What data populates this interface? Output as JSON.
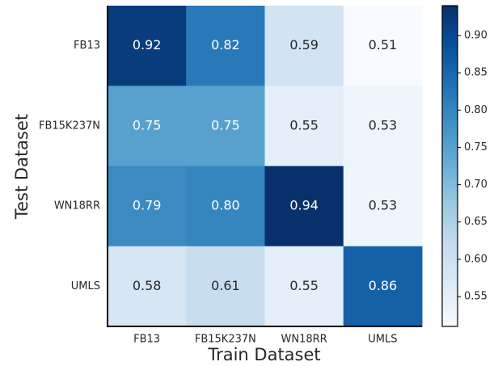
{
  "chart_data": {
    "type": "heatmap",
    "xlabel": "Train Dataset",
    "ylabel": "Test Dataset",
    "x_categories": [
      "FB13",
      "FB15K237N",
      "WN18RR",
      "UMLS"
    ],
    "y_categories": [
      "FB13",
      "FB15K237N",
      "WN18RR",
      "UMLS"
    ],
    "values": [
      [
        0.92,
        0.82,
        0.59,
        0.51
      ],
      [
        0.75,
        0.75,
        0.55,
        0.53
      ],
      [
        0.79,
        0.8,
        0.94,
        0.53
      ],
      [
        0.58,
        0.61,
        0.55,
        0.86
      ]
    ],
    "value_labels": [
      [
        "0.92",
        "0.82",
        "0.59",
        "0.51"
      ],
      [
        "0.75",
        "0.75",
        "0.55",
        "0.53"
      ],
      [
        "0.79",
        "0.80",
        "0.94",
        "0.53"
      ],
      [
        "0.58",
        "0.61",
        "0.55",
        "0.86"
      ]
    ],
    "colormap": [
      "#f7fbff",
      "#deebf7",
      "#c6dbef",
      "#9ecae1",
      "#6baed6",
      "#4292c6",
      "#2171b5",
      "#08519c",
      "#08306b"
    ],
    "clim": [
      0.51,
      0.94
    ],
    "cticks": [
      0.55,
      {
        "value": 0.6,
        "label": "0.60"
      },
      0.65,
      {
        "value": 0.7,
        "label": "0.70"
      },
      0.75,
      {
        "value": 0.8,
        "label": "0.80"
      },
      0.85,
      {
        "value": 0.9,
        "label": "0.90"
      }
    ]
  }
}
